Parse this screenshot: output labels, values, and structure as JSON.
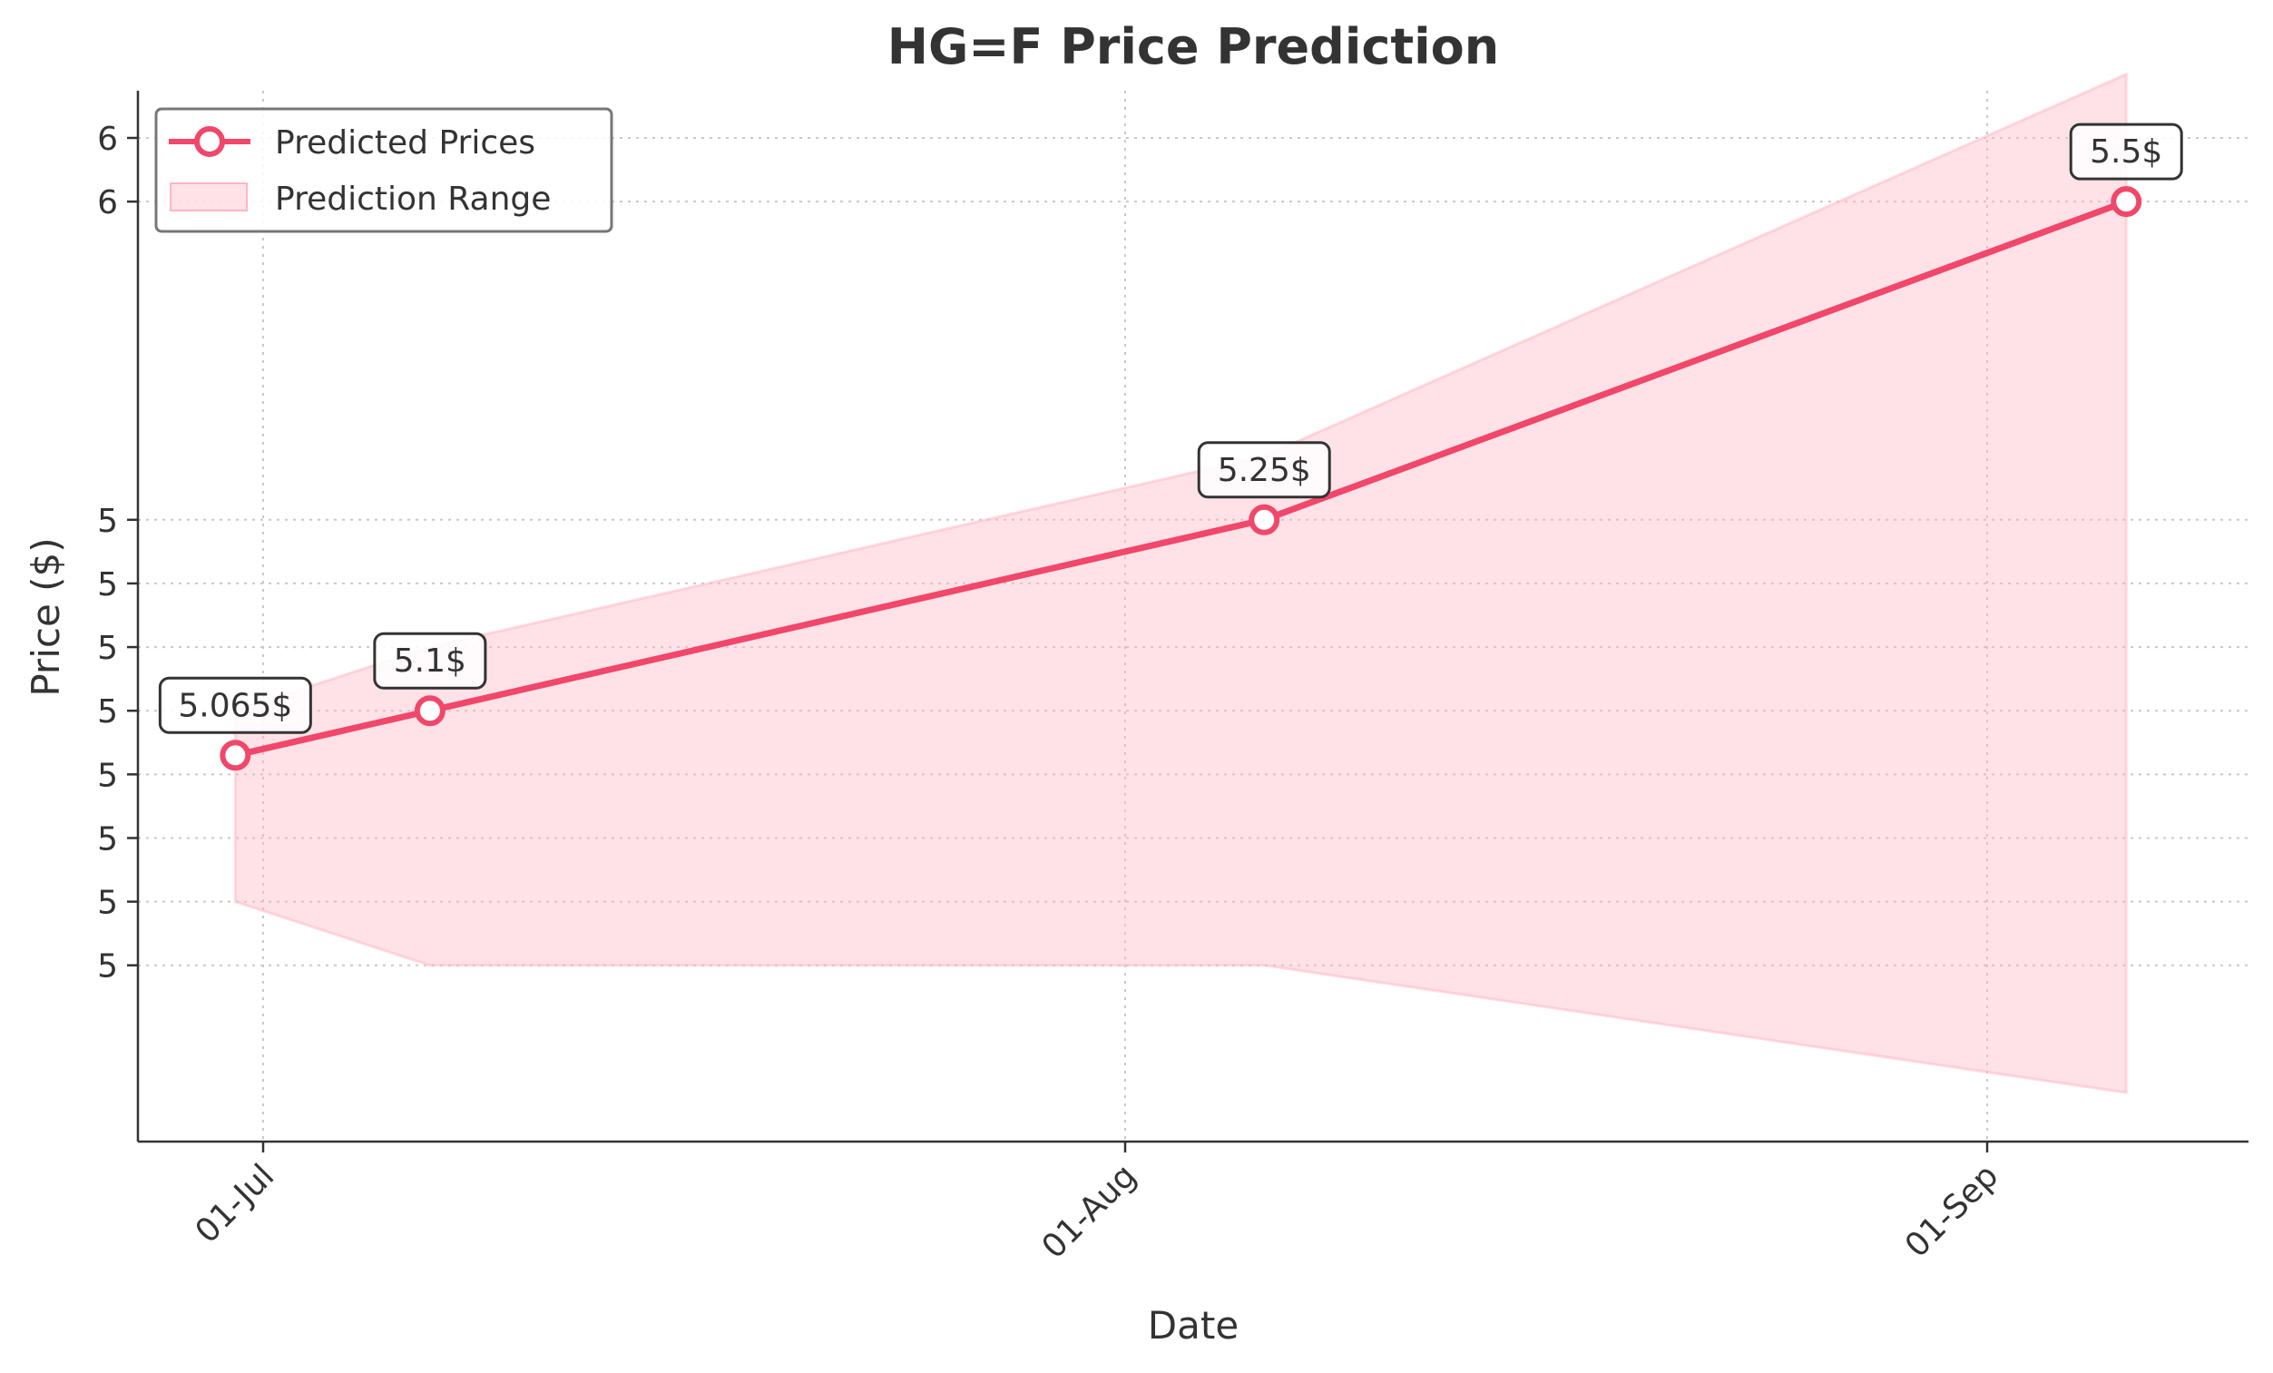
{
  "chart_data": {
    "type": "line",
    "title": "HG=F Price Prediction",
    "xlabel": "Date",
    "ylabel": "Price ($)",
    "x_ticks": [
      {
        "label": "01-Jul",
        "date": "2024-07-01"
      },
      {
        "label": "01-Aug",
        "date": "2024-08-01"
      },
      {
        "label": "01-Sep",
        "date": "2024-09-01"
      }
    ],
    "y_ticks": [
      {
        "label": "5",
        "value": 4.9
      },
      {
        "label": "5",
        "value": 4.95
      },
      {
        "label": "5",
        "value": 5.0
      },
      {
        "label": "5",
        "value": 5.05
      },
      {
        "label": "5",
        "value": 5.1
      },
      {
        "label": "5",
        "value": 5.15
      },
      {
        "label": "5",
        "value": 5.2
      },
      {
        "label": "5",
        "value": 5.25
      },
      {
        "label": "6",
        "value": 5.5
      },
      {
        "label": "6",
        "value": 5.55
      }
    ],
    "series": [
      {
        "name": "Predicted Prices",
        "color": "#f0476a",
        "points": [
          {
            "date": "2024-06-30",
            "value": 5.065,
            "label": "5.065$"
          },
          {
            "date": "2024-07-07",
            "value": 5.1,
            "label": "5.1$"
          },
          {
            "date": "2024-08-06",
            "value": 5.25,
            "label": "5.25$"
          },
          {
            "date": "2024-09-06",
            "value": 5.5,
            "label": "5.5$"
          }
        ]
      }
    ],
    "range": {
      "name": "Prediction Range",
      "color": "#ffb6c3",
      "points": [
        {
          "date": "2024-06-30",
          "low": 4.95,
          "high": 5.1
        },
        {
          "date": "2024-07-07",
          "low": 4.9,
          "high": 5.15
        },
        {
          "date": "2024-08-06",
          "low": 4.9,
          "high": 5.3
        },
        {
          "date": "2024-09-06",
          "low": 4.8,
          "high": 5.6
        }
      ]
    },
    "grid": true,
    "legend_position": "top-left"
  }
}
